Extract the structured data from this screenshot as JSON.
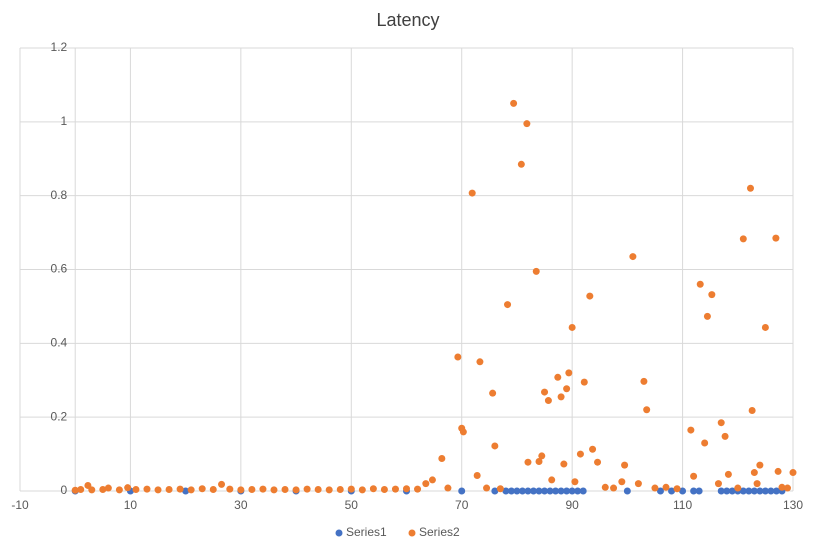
{
  "chart_data": {
    "type": "scatter",
    "title": "Latency",
    "xlim": [
      -10,
      130
    ],
    "xticks": [
      -10,
      10,
      30,
      50,
      70,
      90,
      110,
      130
    ],
    "ylim": [
      0,
      1.2
    ],
    "yticks": [
      0,
      0.2,
      0.4,
      0.6,
      0.8,
      1,
      1.2
    ],
    "grid": true,
    "legend": "bottom",
    "series": [
      {
        "name": "Series1",
        "color": "#4472c4",
        "x": [
          0,
          10,
          20,
          30,
          40,
          50,
          60,
          70,
          76,
          78,
          79,
          80,
          81,
          82,
          83,
          84,
          85,
          86,
          87,
          88,
          89,
          90,
          91,
          92,
          100,
          106,
          108,
          110,
          112,
          113,
          117,
          118,
          119,
          120,
          121,
          122,
          123,
          124,
          125,
          126,
          127,
          128
        ],
        "values": [
          0,
          0,
          0,
          0,
          0,
          0,
          0,
          0,
          0,
          0,
          0,
          0,
          0,
          0,
          0,
          0,
          0,
          0,
          0,
          0,
          0,
          0,
          0,
          0,
          0,
          0,
          0,
          0,
          0,
          0,
          0,
          0,
          0,
          0,
          0,
          0,
          0,
          0,
          0,
          0,
          0,
          0
        ]
      },
      {
        "name": "Series2",
        "color": "#ed7d31",
        "x": [
          0,
          1,
          2.3,
          3,
          5,
          6,
          8,
          9.5,
          11,
          13,
          15,
          17,
          19,
          21,
          23,
          25,
          26.5,
          28,
          30,
          32,
          34,
          36,
          38,
          40,
          42,
          44,
          46,
          48,
          50,
          52,
          54,
          56,
          58,
          60,
          62,
          63.5,
          64.7,
          66.4,
          67.5,
          69.3,
          70,
          70.3,
          71.9,
          72.8,
          73.3,
          74.5,
          75.6,
          76,
          77,
          78.3,
          79.4,
          80.8,
          81.8,
          82,
          83.5,
          84,
          84.5,
          85,
          85.7,
          86.3,
          87.4,
          88,
          88.5,
          89,
          89.4,
          90,
          90.5,
          91.5,
          92.2,
          93.2,
          93.7,
          94.6,
          96,
          97.5,
          99,
          99.5,
          101,
          102,
          103,
          103.5,
          105,
          107,
          109,
          111.5,
          112,
          113.2,
          114,
          114.5,
          115.3,
          116.5,
          117,
          117.7,
          118.3,
          120,
          121,
          122.3,
          122.6,
          123,
          123.5,
          124,
          125,
          126.9,
          127.3,
          128,
          129,
          130
        ],
        "values": [
          0.002,
          0.004,
          0.015,
          0.003,
          0.004,
          0.008,
          0.003,
          0.009,
          0.004,
          0.005,
          0.003,
          0.004,
          0.005,
          0.003,
          0.006,
          0.004,
          0.018,
          0.005,
          0.003,
          0.004,
          0.005,
          0.003,
          0.004,
          0.003,
          0.005,
          0.004,
          0.003,
          0.004,
          0.005,
          0.003,
          0.006,
          0.004,
          0.005,
          0.006,
          0.005,
          0.02,
          0.03,
          0.088,
          0.008,
          0.363,
          0.17,
          0.16,
          0.807,
          0.042,
          0.35,
          0.008,
          0.265,
          0.122,
          0.006,
          0.505,
          1.05,
          0.885,
          0.995,
          0.078,
          0.595,
          0.08,
          0.095,
          0.268,
          0.245,
          0.03,
          0.308,
          0.255,
          0.073,
          0.277,
          0.32,
          0.443,
          0.025,
          0.1,
          0.295,
          0.528,
          0.113,
          0.078,
          0.01,
          0.008,
          0.025,
          0.07,
          0.635,
          0.02,
          0.297,
          0.22,
          0.008,
          0.01,
          0.006,
          0.165,
          0.04,
          0.56,
          0.13,
          0.473,
          0.532,
          0.02,
          0.185,
          0.148,
          0.045,
          0.008,
          0.683,
          0.82,
          0.218,
          0.05,
          0.02,
          0.07,
          0.443,
          0.685,
          0.053,
          0.01,
          0.008,
          0.05
        ]
      }
    ]
  }
}
